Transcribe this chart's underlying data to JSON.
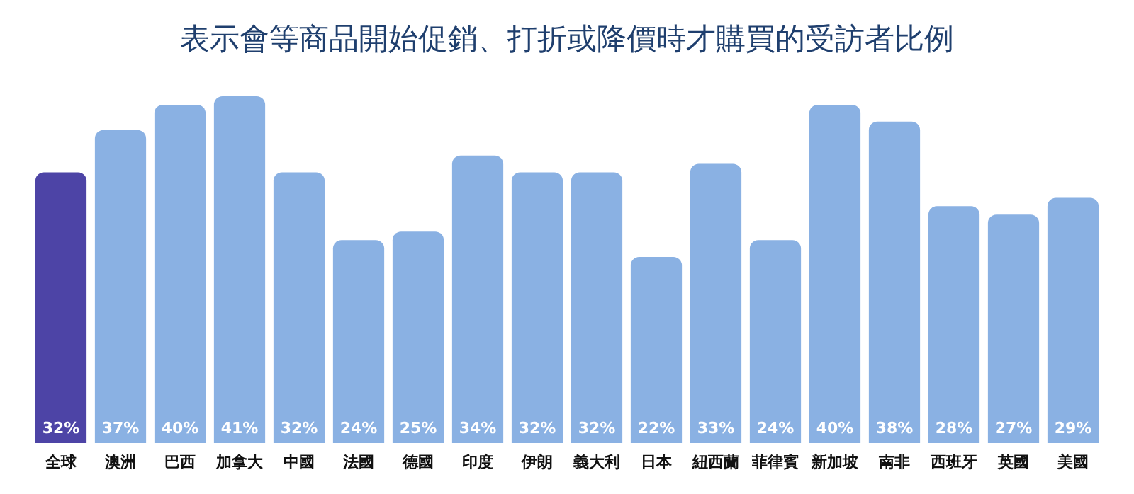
{
  "chart_data": {
    "type": "bar",
    "title": "表示會等商品開始促銷、打折或降價時才購買的受訪者比例",
    "categories": [
      "全球",
      "澳洲",
      "巴西",
      "加拿大",
      "中國",
      "法國",
      "德國",
      "印度",
      "伊朗",
      "義大利",
      "日本",
      "紐西蘭",
      "菲律賓",
      "新加坡",
      "南非",
      "西班牙",
      "英國",
      "美國"
    ],
    "values": [
      32,
      37,
      40,
      41,
      32,
      24,
      25,
      34,
      32,
      32,
      22,
      33,
      24,
      40,
      38,
      28,
      27,
      29
    ],
    "colors": [
      "#4d44a6",
      "#8ab1e3",
      "#8ab1e3",
      "#8ab1e3",
      "#8ab1e3",
      "#8ab1e3",
      "#8ab1e3",
      "#8ab1e3",
      "#8ab1e3",
      "#8ab1e3",
      "#8ab1e3",
      "#8ab1e3",
      "#8ab1e3",
      "#8ab1e3",
      "#8ab1e3",
      "#8ab1e3",
      "#8ab1e3",
      "#8ab1e3"
    ],
    "value_labels": [
      "32%",
      "37%",
      "40%",
      "41%",
      "32%",
      "24%",
      "25%",
      "34%",
      "32%",
      "32%",
      "22%",
      "33%",
      "24%",
      "40%",
      "38%",
      "28%",
      "27%",
      "29%"
    ],
    "tick_labels": "x"
  }
}
